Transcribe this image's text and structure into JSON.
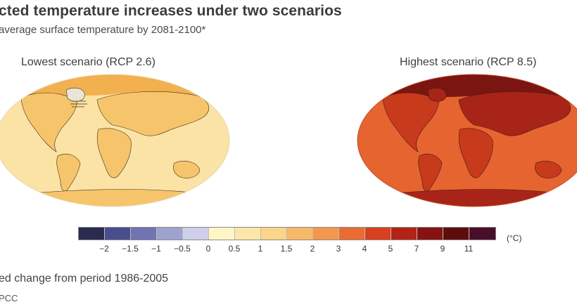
{
  "header": {
    "title": "cted temperature increases under two scenarios",
    "subtitle": "average surface temperature by 2081-2100*"
  },
  "panels": [
    {
      "label": "Lowest scenario (RCP 2.6)",
      "ocean_color": "#fbe3a6",
      "land_color": "#f6c56b",
      "warm_color": "#f2b04f",
      "hot_color": "#e9963c",
      "icon": "world-map-icon"
    },
    {
      "label": "Highest scenario (RCP 8.5)",
      "ocean_color": "#e6642f",
      "land_color": "#c83a1c",
      "warm_color": "#a82418",
      "hot_color": "#7a1512",
      "icon": "world-map-icon"
    }
  ],
  "legend": {
    "unit": "(°C)",
    "colors": [
      "#2b2a4f",
      "#4a4e8e",
      "#7074b3",
      "#9fa1cf",
      "#cfd0ea",
      "#fff6c8",
      "#fde7a8",
      "#fbd58a",
      "#f8b869",
      "#f4974c",
      "#ea6c32",
      "#d8401f",
      "#b22316",
      "#86130f",
      "#5f0c0c",
      "#4a0e2a"
    ],
    "ticks": [
      "−2",
      "−1.5",
      "−1",
      "−0.5",
      "0",
      "0.5",
      "1",
      "1.5",
      "2",
      "3",
      "4",
      "5",
      "7",
      "9",
      "11"
    ]
  },
  "footer": {
    "note": "ed change from period 1986-2005",
    "source": "PCC"
  }
}
